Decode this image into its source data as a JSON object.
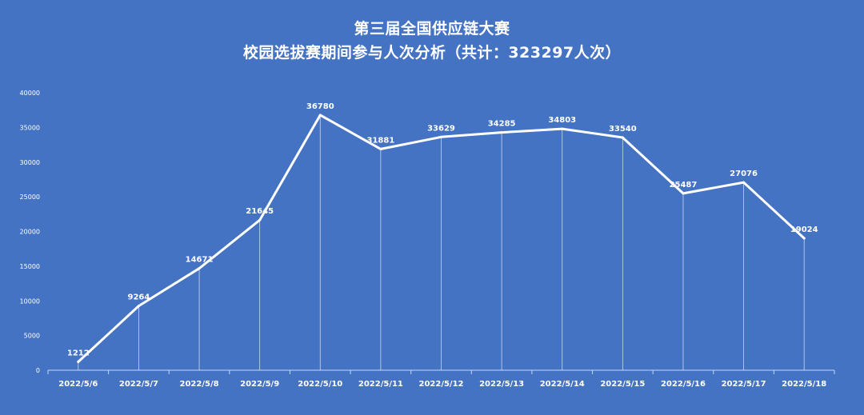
{
  "chart_data": {
    "type": "line",
    "title": "第三届全国供应链大赛",
    "subtitle": "校园选拔赛期间参与人次分析（共计：323297人次）",
    "xlabel": "",
    "ylabel": "",
    "categories": [
      "2022/5/6",
      "2022/5/7",
      "2022/5/8",
      "2022/5/9",
      "2022/5/10",
      "2022/5/11",
      "2022/5/12",
      "2022/5/13",
      "2022/5/14",
      "2022/5/15",
      "2022/5/16",
      "2022/5/17",
      "2022/5/18"
    ],
    "values": [
      1212,
      9264,
      14671,
      21645,
      36780,
      31881,
      33629,
      34285,
      34803,
      33540,
      25487,
      27076,
      19024
    ],
    "value_labels": [
      "1212",
      "9264",
      "14671",
      "21645",
      "36780",
      "31881",
      "33629",
      "34285",
      "34803",
      "33540",
      "25487",
      "27076",
      "19024"
    ],
    "ylim": [
      0,
      40000
    ],
    "yticks": [
      0,
      5000,
      10000,
      15000,
      20000,
      25000,
      30000,
      35000,
      40000
    ],
    "ytick_labels": [
      "0",
      "5000",
      "10000",
      "15000",
      "20000",
      "25000",
      "30000",
      "35000",
      "40000"
    ],
    "grid": false,
    "drop_lines": true,
    "legend": "none",
    "colors": {
      "background": "#4573c4",
      "line": "#ffffff",
      "text": "#ffffff"
    }
  }
}
